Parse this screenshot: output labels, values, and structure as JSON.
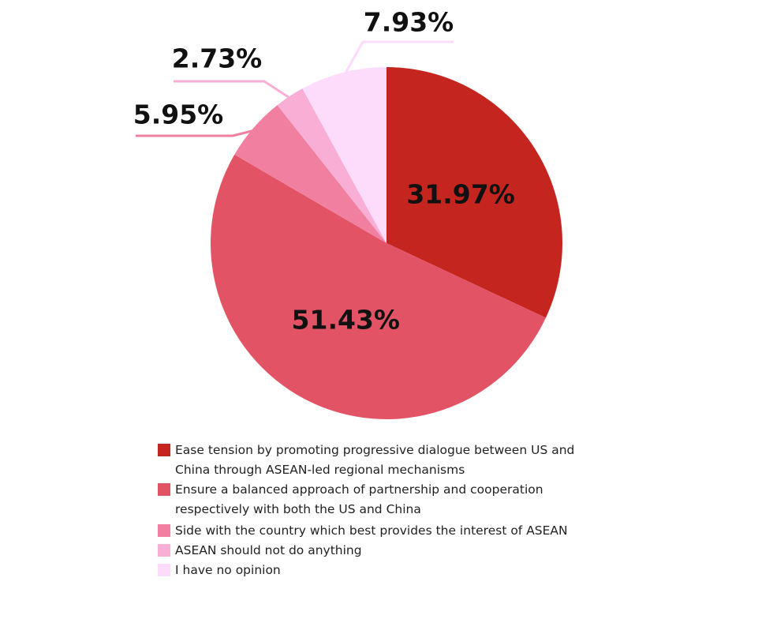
{
  "chart_data": {
    "type": "pie",
    "categories": [
      "Ease tension by promoting progressive dialogue between US and China through ASEAN-led regional mechanisms",
      "Ensure a balanced approach of partnership and cooperation respectively with both the US and China",
      "Side with the country which best provides the interest of ASEAN",
      "ASEAN should not do anything",
      "I have no opinion"
    ],
    "values": [
      31.97,
      51.43,
      5.95,
      2.73,
      7.93
    ],
    "value_labels": [
      "31.97%",
      "51.43%",
      "5.95%",
      "2.73%",
      "7.93%"
    ],
    "colors": [
      "#c4251f",
      "#e35366",
      "#f07fa0",
      "#f9aed6",
      "#fddbfb"
    ]
  }
}
